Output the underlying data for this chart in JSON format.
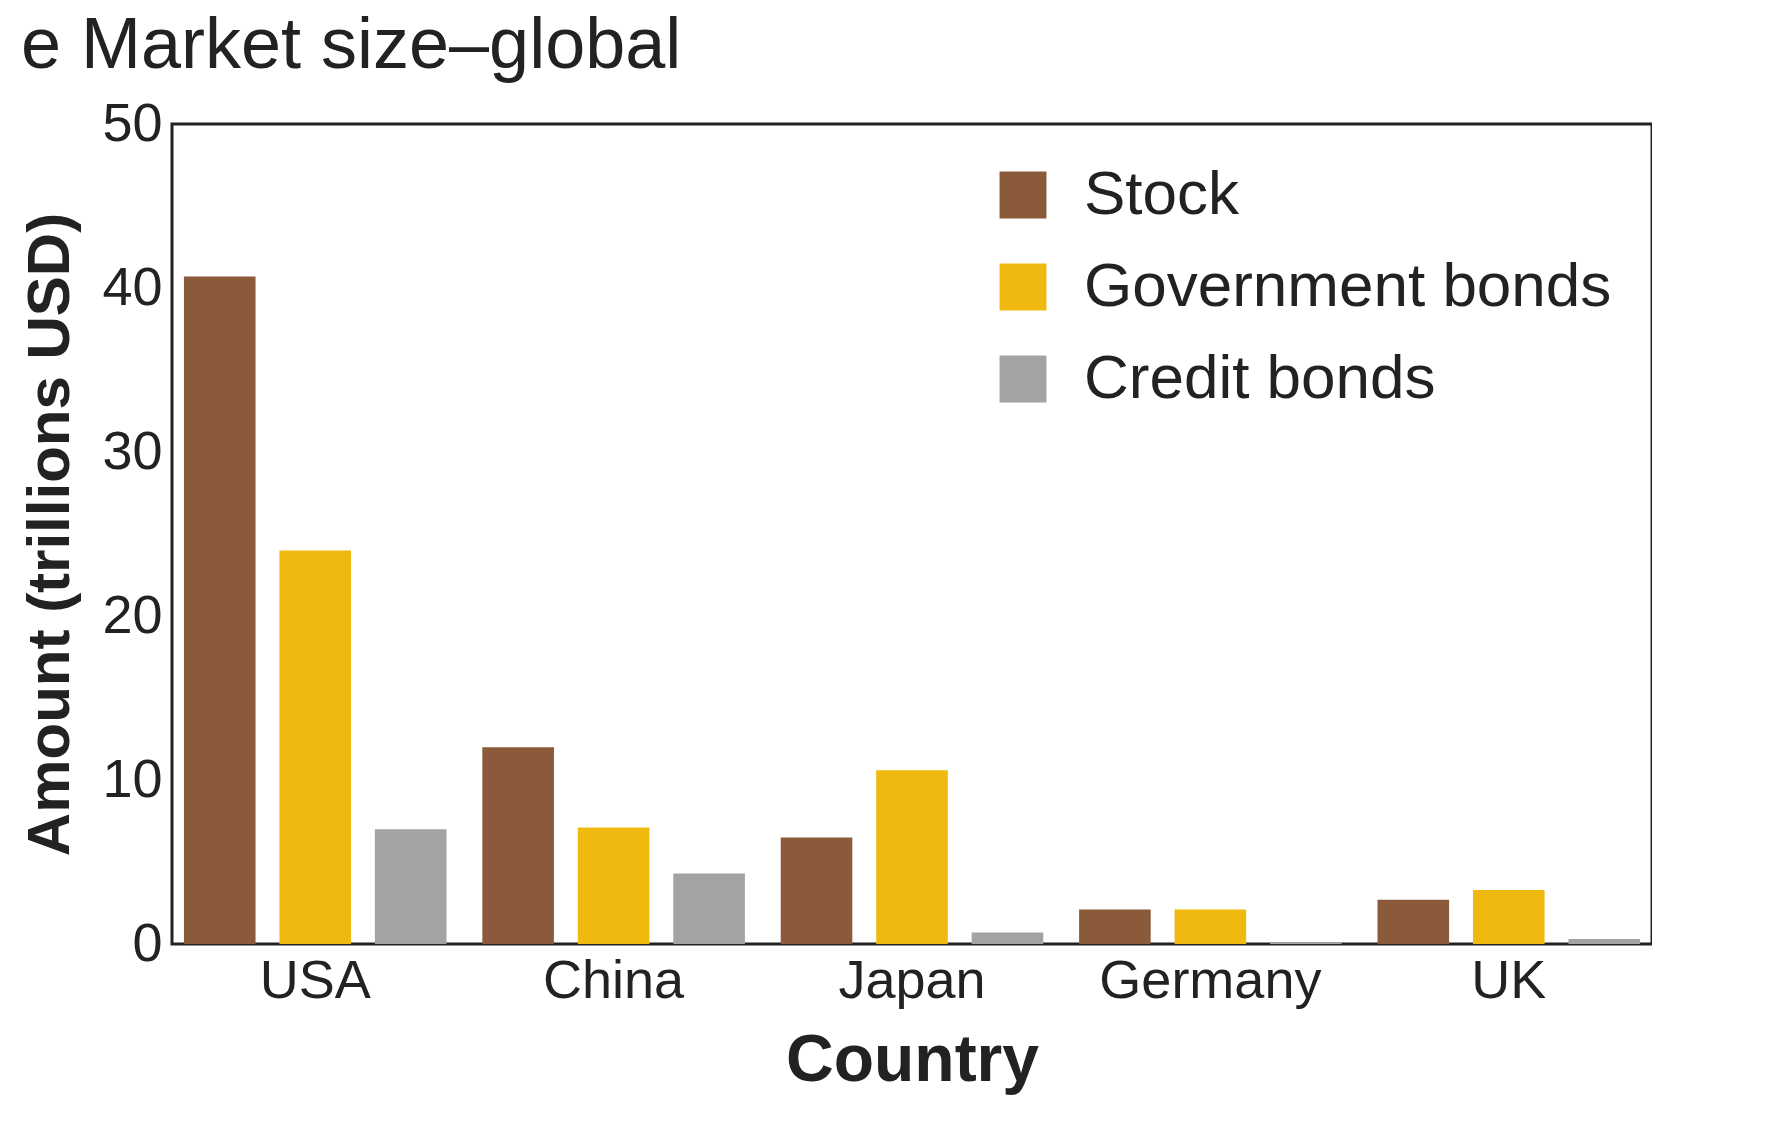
{
  "chart_data": {
    "type": "bar",
    "title": "e  Market size–global",
    "xlabel": "Country",
    "ylabel": "Amount (trillions USD)",
    "categories": [
      "USA",
      "China",
      "Japan",
      "Germany",
      "UK"
    ],
    "series": [
      {
        "name": "Stock",
        "color": "#8b5a3a",
        "values": [
          40.7,
          12.0,
          6.5,
          2.1,
          2.7
        ]
      },
      {
        "name": "Government bonds",
        "color": "#f0b90f",
        "values": [
          24.0,
          7.1,
          10.6,
          2.1,
          3.3
        ]
      },
      {
        "name": "Credit bonds",
        "color": "#a3a3a3",
        "values": [
          7.0,
          4.3,
          0.7,
          0.1,
          0.3
        ]
      }
    ],
    "ylim": [
      0,
      50
    ],
    "yticks": [
      0,
      10,
      20,
      30,
      40,
      50
    ],
    "grid": false,
    "legend": "top right"
  }
}
